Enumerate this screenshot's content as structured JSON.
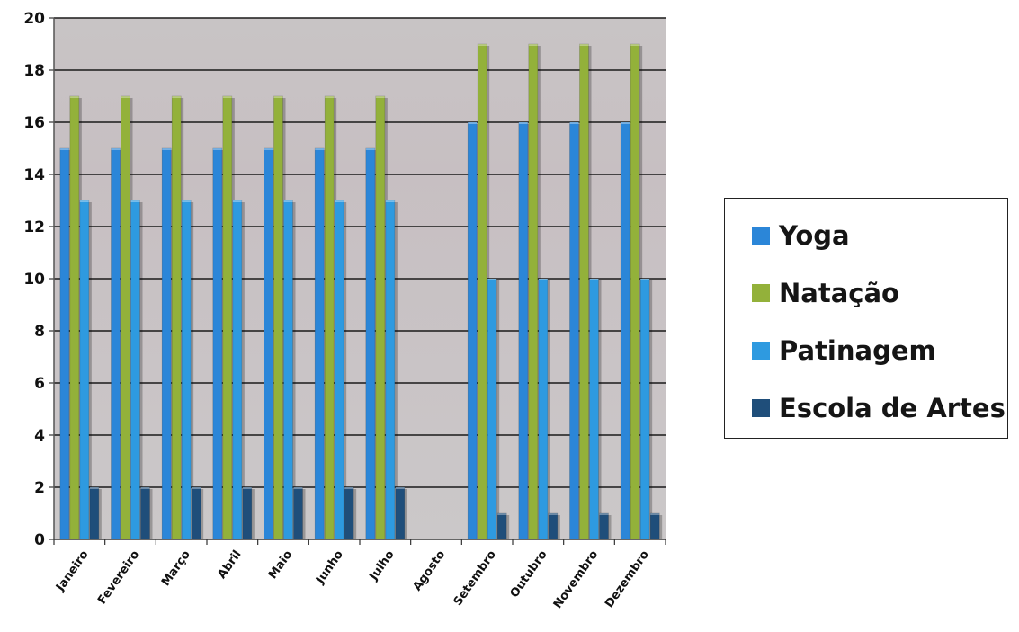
{
  "chart_data": {
    "type": "bar",
    "categories": [
      "Janeiro",
      "Fevereiro",
      "Março",
      "Abril",
      "Maio",
      "Junho",
      "Julho",
      "Agosto",
      "Setembro",
      "Outubro",
      "Novembro",
      "Dezembro"
    ],
    "series": [
      {
        "name": "Yoga",
        "color": "#2b86d8",
        "values": [
          15,
          15,
          15,
          15,
          15,
          15,
          15,
          0,
          16,
          16,
          16,
          16
        ]
      },
      {
        "name": "Natação",
        "color": "#93b13a",
        "values": [
          17,
          17,
          17,
          17,
          17,
          17,
          17,
          0,
          19,
          19,
          19,
          19
        ]
      },
      {
        "name": "Patinagem",
        "color": "#2e9ae0",
        "values": [
          13,
          13,
          13,
          13,
          13,
          13,
          13,
          0,
          10,
          10,
          10,
          10
        ]
      },
      {
        "name": "Escola de Artes",
        "color": "#1f4e7a",
        "values": [
          2,
          2,
          2,
          2,
          2,
          2,
          2,
          0,
          1,
          1,
          1,
          1
        ]
      }
    ],
    "y_ticks": [
      0,
      2,
      4,
      6,
      8,
      10,
      12,
      14,
      16,
      18,
      20
    ],
    "ylim": [
      0,
      20
    ],
    "grid": true,
    "legend_position": "right",
    "plot_background": "#c9c4c6"
  }
}
